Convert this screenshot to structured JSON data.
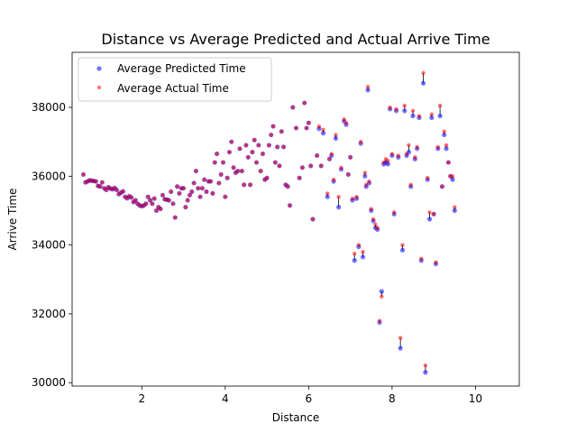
{
  "chart_data": {
    "type": "scatter",
    "title": "Distance vs Average Predicted and Actual Arrive Time",
    "xlabel": "Distance",
    "ylabel": "Arrive Time",
    "xlim": [
      0.33,
      11.05
    ],
    "ylim": [
      29900,
      39600
    ],
    "xticks": [
      2,
      4,
      6,
      8,
      10
    ],
    "yticks": [
      30000,
      32000,
      34000,
      36000,
      38000
    ],
    "legend_position": "upper-left",
    "series": [
      {
        "name": "Average Predicted Time",
        "color": "#0000ff",
        "alpha": 0.55
      },
      {
        "name": "Average Actual Time",
        "color": "#ff0000",
        "alpha": 0.55
      }
    ],
    "points": [
      [
        0.6,
        36050,
        36050
      ],
      [
        0.65,
        35820,
        35820
      ],
      [
        0.7,
        35850,
        35850
      ],
      [
        0.75,
        35880,
        35880
      ],
      [
        0.8,
        35870,
        35870
      ],
      [
        0.85,
        35860,
        35860
      ],
      [
        0.9,
        35850,
        35850
      ],
      [
        0.95,
        35720,
        35720
      ],
      [
        1.0,
        35700,
        35700
      ],
      [
        1.05,
        35820,
        35820
      ],
      [
        1.1,
        35650,
        35650
      ],
      [
        1.15,
        35600,
        35600
      ],
      [
        1.2,
        35680,
        35680
      ],
      [
        1.25,
        35640,
        35640
      ],
      [
        1.3,
        35620,
        35620
      ],
      [
        1.35,
        35660,
        35660
      ],
      [
        1.4,
        35600,
        35600
      ],
      [
        1.45,
        35480,
        35480
      ],
      [
        1.5,
        35520,
        35520
      ],
      [
        1.55,
        35560,
        35560
      ],
      [
        1.6,
        35400,
        35400
      ],
      [
        1.65,
        35360,
        35360
      ],
      [
        1.7,
        35420,
        35420
      ],
      [
        1.75,
        35380,
        35380
      ],
      [
        1.8,
        35250,
        35250
      ],
      [
        1.85,
        35300,
        35300
      ],
      [
        1.9,
        35200,
        35200
      ],
      [
        1.95,
        35150,
        35150
      ],
      [
        2.0,
        35130,
        35130
      ],
      [
        2.05,
        35150,
        35150
      ],
      [
        2.1,
        35200,
        35200
      ],
      [
        2.15,
        35400,
        35400
      ],
      [
        2.2,
        35300,
        35300
      ],
      [
        2.25,
        35200,
        35200
      ],
      [
        2.3,
        35350,
        35350
      ],
      [
        2.35,
        35000,
        35000
      ],
      [
        2.4,
        35100,
        35100
      ],
      [
        2.45,
        35050,
        35050
      ],
      [
        2.5,
        35450,
        35450
      ],
      [
        2.55,
        35330,
        35330
      ],
      [
        2.6,
        35320,
        35320
      ],
      [
        2.65,
        35300,
        35300
      ],
      [
        2.7,
        35550,
        35550
      ],
      [
        2.75,
        35200,
        35200
      ],
      [
        2.8,
        34800,
        34800
      ],
      [
        2.85,
        35700,
        35700
      ],
      [
        2.9,
        35500,
        35500
      ],
      [
        2.95,
        35650,
        35650
      ],
      [
        3.0,
        35650,
        35650
      ],
      [
        3.05,
        35100,
        35100
      ],
      [
        3.1,
        35300,
        35300
      ],
      [
        3.15,
        35450,
        35450
      ],
      [
        3.2,
        35550,
        35550
      ],
      [
        3.25,
        35800,
        35800
      ],
      [
        3.3,
        36150,
        36150
      ],
      [
        3.35,
        35650,
        35650
      ],
      [
        3.4,
        35400,
        35400
      ],
      [
        3.45,
        35650,
        35650
      ],
      [
        3.5,
        35900,
        35900
      ],
      [
        3.55,
        35550,
        35550
      ],
      [
        3.6,
        35850,
        35850
      ],
      [
        3.65,
        35850,
        35850
      ],
      [
        3.7,
        35500,
        35500
      ],
      [
        3.75,
        36400,
        36400
      ],
      [
        3.8,
        36650,
        36650
      ],
      [
        3.85,
        35800,
        35800
      ],
      [
        3.9,
        36050,
        36050
      ],
      [
        3.95,
        36400,
        36400
      ],
      [
        4.0,
        35400,
        35400
      ],
      [
        4.05,
        35950,
        35950
      ],
      [
        4.1,
        36700,
        36700
      ],
      [
        4.15,
        37000,
        37000
      ],
      [
        4.2,
        36250,
        36250
      ],
      [
        4.25,
        36100,
        36100
      ],
      [
        4.3,
        36150,
        36150
      ],
      [
        4.35,
        36800,
        36800
      ],
      [
        4.4,
        36150,
        36150
      ],
      [
        4.45,
        35750,
        35750
      ],
      [
        4.5,
        36900,
        36900
      ],
      [
        4.55,
        36550,
        36550
      ],
      [
        4.6,
        35750,
        35750
      ],
      [
        4.65,
        36700,
        36700
      ],
      [
        4.7,
        37050,
        37050
      ],
      [
        4.75,
        36400,
        36400
      ],
      [
        4.8,
        36900,
        36900
      ],
      [
        4.85,
        36150,
        36150
      ],
      [
        4.9,
        36650,
        36650
      ],
      [
        4.95,
        35900,
        35900
      ],
      [
        5.0,
        35950,
        35950
      ],
      [
        5.05,
        36900,
        36900
      ],
      [
        5.1,
        37200,
        37200
      ],
      [
        5.15,
        37450,
        37450
      ],
      [
        5.2,
        36400,
        36400
      ],
      [
        5.25,
        36850,
        36850
      ],
      [
        5.3,
        36300,
        36300
      ],
      [
        5.35,
        37300,
        37300
      ],
      [
        5.4,
        36850,
        36850
      ],
      [
        5.45,
        35750,
        35750
      ],
      [
        5.5,
        35700,
        35700
      ],
      [
        5.55,
        35150,
        35150
      ],
      [
        5.62,
        38000,
        38000
      ],
      [
        5.7,
        37400,
        37400
      ],
      [
        5.78,
        35950,
        35950
      ],
      [
        5.85,
        36250,
        36250
      ],
      [
        5.9,
        38130,
        38130
      ],
      [
        5.95,
        37400,
        37400
      ],
      [
        6.0,
        37550,
        37550
      ],
      [
        6.05,
        36300,
        36300
      ],
      [
        6.1,
        34750,
        34750
      ],
      [
        6.2,
        36600,
        36600
      ],
      [
        6.25,
        37380,
        37450
      ],
      [
        6.3,
        36300,
        36300
      ],
      [
        6.35,
        37250,
        37350
      ],
      [
        6.45,
        35400,
        35500
      ],
      [
        6.5,
        36500,
        36500
      ],
      [
        6.55,
        36600,
        36650
      ],
      [
        6.6,
        35850,
        35900
      ],
      [
        6.65,
        37100,
        37200
      ],
      [
        6.72,
        35100,
        35400
      ],
      [
        6.78,
        36200,
        36250
      ],
      [
        6.85,
        37600,
        37650
      ],
      [
        6.9,
        37500,
        37550
      ],
      [
        6.95,
        36050,
        36050
      ],
      [
        7.0,
        36550,
        36550
      ],
      [
        7.05,
        35300,
        35350
      ],
      [
        7.1,
        33550,
        33750
      ],
      [
        7.15,
        35350,
        35400
      ],
      [
        7.2,
        33950,
        34000
      ],
      [
        7.25,
        36950,
        37000
      ],
      [
        7.3,
        33650,
        33800
      ],
      [
        7.35,
        36000,
        36100
      ],
      [
        7.38,
        35700,
        35750
      ],
      [
        7.42,
        38500,
        38600
      ],
      [
        7.45,
        35800,
        35850
      ],
      [
        7.5,
        35000,
        35050
      ],
      [
        7.55,
        34700,
        34750
      ],
      [
        7.6,
        34500,
        34600
      ],
      [
        7.65,
        34450,
        34500
      ],
      [
        7.7,
        31750,
        31800
      ],
      [
        7.75,
        32650,
        32500
      ],
      [
        7.8,
        36350,
        36400
      ],
      [
        7.85,
        36400,
        36500
      ],
      [
        7.9,
        36350,
        36450
      ],
      [
        7.95,
        37950,
        38000
      ],
      [
        8.0,
        36600,
        36650
      ],
      [
        8.05,
        34900,
        34950
      ],
      [
        8.1,
        37900,
        37950
      ],
      [
        8.15,
        36550,
        36600
      ],
      [
        8.2,
        31000,
        31300
      ],
      [
        8.25,
        33850,
        34000
      ],
      [
        8.3,
        37900,
        38050
      ],
      [
        8.35,
        36600,
        36650
      ],
      [
        8.4,
        36700,
        36900
      ],
      [
        8.45,
        35700,
        35750
      ],
      [
        8.5,
        37750,
        37900
      ],
      [
        8.55,
        36500,
        36550
      ],
      [
        8.6,
        36800,
        36850
      ],
      [
        8.65,
        37700,
        37750
      ],
      [
        8.7,
        33550,
        33600
      ],
      [
        8.75,
        38700,
        39000
      ],
      [
        8.8,
        30300,
        30500
      ],
      [
        8.85,
        35900,
        35950
      ],
      [
        8.9,
        34750,
        34950
      ],
      [
        8.95,
        37700,
        37800
      ],
      [
        9.0,
        34900,
        34900
      ],
      [
        9.05,
        33450,
        33500
      ],
      [
        9.1,
        36800,
        36850
      ],
      [
        9.15,
        37750,
        38050
      ],
      [
        9.2,
        35700,
        35700
      ],
      [
        9.25,
        37200,
        37300
      ],
      [
        9.3,
        36800,
        36900
      ],
      [
        9.35,
        36400,
        36400
      ],
      [
        9.4,
        36000,
        36000
      ],
      [
        9.45,
        35900,
        36000
      ],
      [
        9.5,
        35000,
        35100
      ]
    ]
  }
}
